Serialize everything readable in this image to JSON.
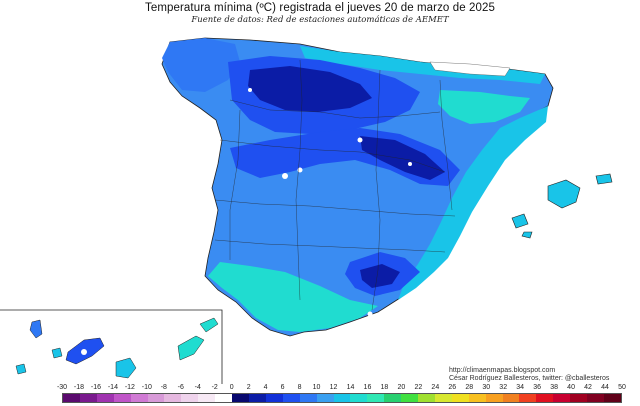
{
  "header": {
    "title": "Temperatura mínima (ºC) registrada el jueves 20 de marzo de 2025",
    "subtitle": "Fuente de datos: Red de estaciones automáticas de AEMET"
  },
  "credits": {
    "url": "http://climaenmapas.blogspot.com",
    "author": "César Rodríguez Ballesteros, twitter: @cballesteros"
  },
  "legend": {
    "ticks": [
      "-30",
      "-18",
      "-16",
      "-14",
      "-12",
      "-10",
      "-8",
      "-6",
      "-4",
      "-2",
      "0",
      "2",
      "4",
      "6",
      "8",
      "10",
      "12",
      "14",
      "16",
      "18",
      "20",
      "22",
      "24",
      "26",
      "28",
      "30",
      "32",
      "34",
      "36",
      "38",
      "40",
      "42",
      "44",
      "50"
    ],
    "colors": [
      "#5a0a6e",
      "#7a1a8e",
      "#a033b0",
      "#c055c8",
      "#d07ad4",
      "#d89ad8",
      "#e6b8e0",
      "#efd3ec",
      "#f7e9f5",
      "#ffffff",
      "#08086e",
      "#0b1ca6",
      "#1230d8",
      "#1f50f0",
      "#2f78f4",
      "#3aa0f0",
      "#19c4e8",
      "#20dcd0",
      "#30e8b4",
      "#28d070",
      "#40e040",
      "#a0e030",
      "#d8e830",
      "#f0e020",
      "#f8c020",
      "#f8a020",
      "#f08020",
      "#f04020",
      "#e01020",
      "#c80030",
      "#a00020",
      "#800020",
      "#600018"
    ]
  },
  "map": {
    "colors": {
      "sea": "#ffffff",
      "deep_cold": "#0b1ca6",
      "cold": "#1f50f0",
      "cool": "#2f78f4",
      "mild": "#3aa0f0",
      "coast": "#19c4e8",
      "warm_coast": "#20dcd0",
      "frost": "#ffffff",
      "border": "#222222"
    }
  }
}
